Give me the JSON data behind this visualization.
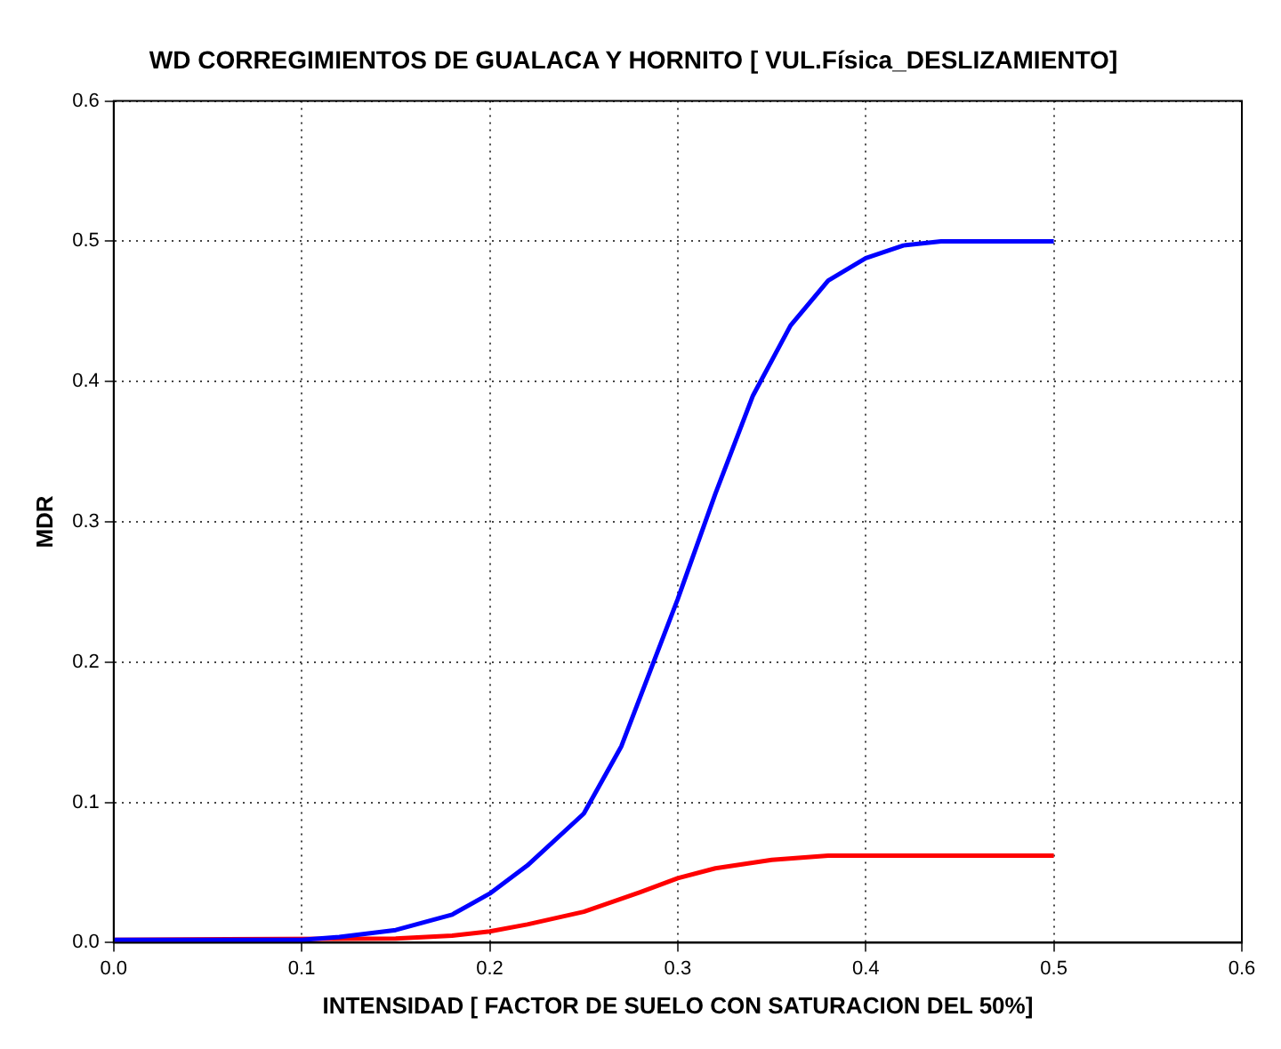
{
  "chart_data": {
    "type": "line",
    "title": "WD CORREGIMIENTOS DE GUALACA Y HORNITO [ VUL.Física_DESLIZAMIENTO]",
    "xlabel": "INTENSIDAD [ FACTOR DE SUELO CON SATURACION DEL 50%]",
    "ylabel": "MDR",
    "series": [
      {
        "color": "#0000ff",
        "x": [
          0,
          0.05,
          0.1,
          0.12,
          0.15,
          0.18,
          0.2,
          0.22,
          0.25,
          0.27,
          0.3,
          0.32,
          0.34,
          0.36,
          0.38,
          0.4,
          0.42,
          0.44,
          0.47,
          0.5
        ],
        "values": [
          0.002,
          0.002,
          0.002,
          0.004,
          0.009,
          0.02,
          0.035,
          0.055,
          0.092,
          0.14,
          0.245,
          0.32,
          0.39,
          0.44,
          0.472,
          0.488,
          0.497,
          0.5,
          0.5,
          0.5
        ]
      },
      {
        "color": "#ff0000",
        "x": [
          0,
          0.15,
          0.18,
          0.2,
          0.22,
          0.25,
          0.28,
          0.3,
          0.32,
          0.35,
          0.38,
          0.4,
          0.45,
          0.5
        ],
        "values": [
          0.002,
          0.003,
          0.005,
          0.008,
          0.013,
          0.022,
          0.036,
          0.046,
          0.053,
          0.059,
          0.062,
          0.062,
          0.062,
          0.062
        ]
      }
    ],
    "xlim": [
      0,
      0.6
    ],
    "xticks": [
      {
        "value": 0,
        "label": "0.0"
      },
      0.1,
      0.2,
      0.3,
      0.4,
      0.5,
      0.6
    ],
    "ylim": [
      0,
      0.6
    ],
    "yticks": [
      {
        "value": 0,
        "label": "0.0"
      },
      0.1,
      0.2,
      0.3,
      0.4,
      0.5,
      0.6
    ],
    "grid": true,
    "marker": "none"
  }
}
